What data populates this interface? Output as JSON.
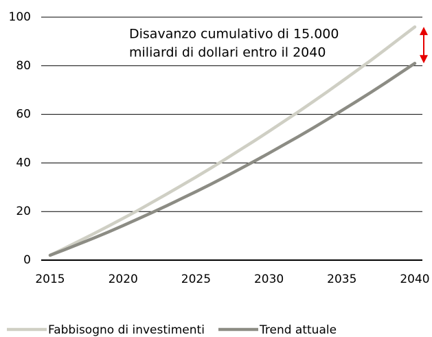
{
  "chart_data": {
    "type": "line",
    "annotation": [
      "Disavanzo cumulativo di 15.000",
      "miliardi di dollari entro il 2040"
    ],
    "annotation_color": "#e60000",
    "x": [
      2015,
      2016,
      2017,
      2018,
      2019,
      2020,
      2021,
      2022,
      2023,
      2024,
      2025,
      2026,
      2027,
      2028,
      2029,
      2030,
      2031,
      2032,
      2033,
      2034,
      2035,
      2036,
      2037,
      2038,
      2039,
      2040
    ],
    "series": [
      {
        "name": "Fabbisogno di investimenti",
        "color": "#cfcfc4",
        "values": [
          2,
          4.9,
          7.9,
          10.9,
          14.0,
          17.2,
          20.4,
          23.8,
          27.2,
          30.7,
          34.2,
          37.8,
          41.5,
          45.3,
          49.1,
          53.0,
          57.0,
          61.0,
          65.1,
          69.3,
          73.6,
          77.9,
          82.3,
          86.8,
          91.4,
          96.0
        ]
      },
      {
        "name": "Trend attuale",
        "color": "#8c8c84",
        "values": [
          2,
          4.3,
          6.7,
          9.1,
          11.6,
          14.2,
          16.9,
          19.6,
          22.4,
          25.3,
          28.2,
          31.2,
          34.3,
          37.5,
          40.7,
          44.0,
          47.4,
          50.8,
          54.3,
          57.9,
          61.6,
          65.3,
          69.1,
          73.0,
          77.0,
          81.0
        ]
      }
    ],
    "xlim": [
      2015,
      2040
    ],
    "xticks": [
      2015,
      2020,
      2025,
      2030,
      2035,
      2040
    ],
    "ylim": [
      0,
      100
    ],
    "yticks": [
      0,
      20,
      40,
      60,
      80,
      100
    ],
    "grid": true,
    "legend": "bottom"
  }
}
